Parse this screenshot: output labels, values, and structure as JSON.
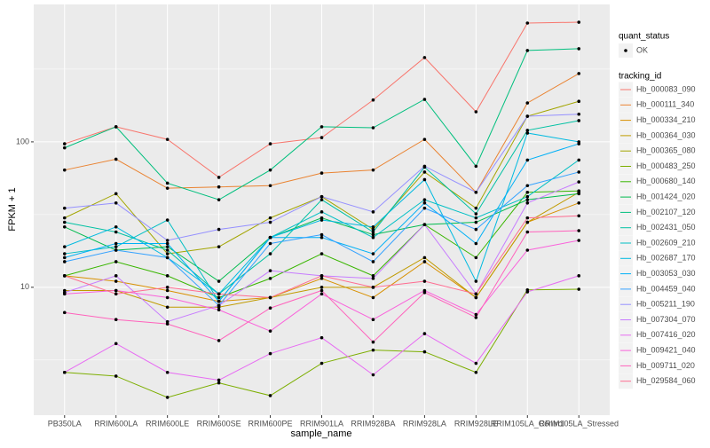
{
  "chart_data": {
    "type": "line",
    "log_y": true,
    "grid": true,
    "xlabel": "sample_name",
    "ylabel": "FPKM + 1",
    "shape_legend_title": "quant_status",
    "shape_legend_items": [
      "OK"
    ],
    "color_legend_title": "tracking_id",
    "categories": [
      "PB350LA",
      "RRIM600LA",
      "RRIM600LE",
      "RRIM600SE",
      "RRIM600PE",
      "RRIM901LA",
      "RRIM928BA",
      "RRIM928LA",
      "RRIM928LE",
      "RRIM105LA_Control",
      "RRIM105LA_Stressed"
    ],
    "ylim": [
      1.32,
      881
    ],
    "yticks": [
      10,
      100
    ],
    "series": [
      {
        "name": "Hb_000083_090",
        "color": "#F8766D",
        "values": [
          97,
          127,
          104,
          57,
          97,
          107,
          194,
          380,
          161,
          656,
          665
        ]
      },
      {
        "name": "Hb_000111_340",
        "color": "#EA8331",
        "values": [
          64,
          76,
          48,
          49,
          50,
          61,
          64,
          104,
          45,
          185,
          295
        ]
      },
      {
        "name": "Hb_000334_210",
        "color": "#D89000",
        "values": [
          12,
          11,
          9.5,
          8,
          8.5,
          11.5,
          8.5,
          15,
          8.5,
          28,
          38
        ]
      },
      {
        "name": "Hb_000364_030",
        "color": "#C09B00",
        "values": [
          9.5,
          9.5,
          7.3,
          7.3,
          8.5,
          10,
          10,
          16,
          8.5,
          28,
          45
        ]
      },
      {
        "name": "Hb_000365_080",
        "color": "#A3A500",
        "values": [
          30,
          44,
          17,
          19,
          30,
          42,
          25,
          62,
          35,
          150,
          190
        ]
      },
      {
        "name": "Hb_000483_250",
        "color": "#7CAE00",
        "values": [
          2.6,
          2.45,
          1.75,
          2.2,
          1.8,
          3,
          3.7,
          3.6,
          2.6,
          9.6,
          9.7
        ]
      },
      {
        "name": "Hb_000680_140",
        "color": "#39B600",
        "values": [
          12,
          15,
          12,
          8.5,
          11.5,
          17,
          12,
          27,
          16,
          45,
          46
        ]
      },
      {
        "name": "Hb_001424_020",
        "color": "#00BB4E",
        "values": [
          26,
          18,
          19,
          11,
          22,
          30,
          23,
          27,
          28,
          40,
          44
        ]
      },
      {
        "name": "Hb_002107_120",
        "color": "#00BF7D",
        "values": [
          91,
          127,
          52,
          40,
          64,
          127,
          125,
          196,
          68,
          425,
          437
        ]
      },
      {
        "name": "Hb_002431_050",
        "color": "#00C1A3",
        "values": [
          28,
          24,
          18,
          9,
          17,
          40,
          24,
          67,
          32,
          120,
          140
        ]
      },
      {
        "name": "Hb_002609_210",
        "color": "#00BFC4",
        "values": [
          17,
          19,
          29,
          8,
          22,
          33,
          22,
          40,
          30,
          42,
          75
        ]
      },
      {
        "name": "Hb_002687_170",
        "color": "#00BAE0",
        "values": [
          19,
          26,
          16,
          9,
          22,
          29,
          26,
          55,
          11,
          115,
          100
        ]
      },
      {
        "name": "Hb_003053_030",
        "color": "#00B0F6",
        "values": [
          16,
          20,
          20,
          8,
          22,
          22,
          17,
          38,
          20,
          75,
          97
        ]
      },
      {
        "name": "Hb_004459_040",
        "color": "#35A2FF",
        "values": [
          15,
          18,
          16,
          7.5,
          20,
          23,
          15,
          35,
          25,
          50,
          62
        ]
      },
      {
        "name": "Hb_005211_190",
        "color": "#9590FF",
        "values": [
          35,
          38,
          21,
          25,
          28,
          42,
          33,
          68,
          45,
          150,
          155
        ]
      },
      {
        "name": "Hb_007304_070",
        "color": "#C77CFF",
        "values": [
          9.2,
          12,
          5.8,
          7.5,
          13,
          12,
          11.5,
          27,
          9,
          38,
          53
        ]
      },
      {
        "name": "Hb_007416_020",
        "color": "#E76BF3",
        "values": [
          2.6,
          4.1,
          2.6,
          2.3,
          3.5,
          4.5,
          2.5,
          4.8,
          3,
          9.3,
          12
        ]
      },
      {
        "name": "Hb_009421_040",
        "color": "#FA62DB",
        "values": [
          9,
          9.5,
          8.5,
          7,
          5,
          9,
          6,
          9.5,
          6.5,
          18,
          21
        ]
      },
      {
        "name": "Hb_009711_020",
        "color": "#FF62BC",
        "values": [
          6.7,
          6,
          5.6,
          4.3,
          7.2,
          9.5,
          4.2,
          9.2,
          6.2,
          24,
          24.5
        ]
      },
      {
        "name": "Hb_029584_060",
        "color": "#FF6C91",
        "values": [
          12,
          9,
          10,
          9,
          8.5,
          12,
          10,
          11,
          9,
          30,
          31
        ]
      }
    ]
  }
}
